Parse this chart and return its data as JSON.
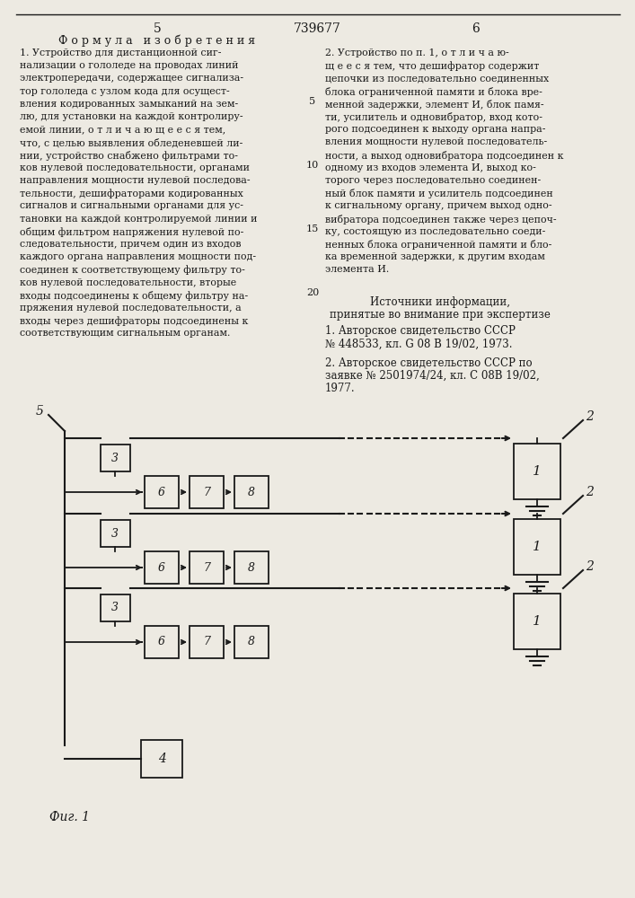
{
  "bg_color": "#edeae2",
  "text_color": "#1a1a1a",
  "page_left": "5",
  "page_title": "739677",
  "page_right": "6",
  "section_header": "Ф о р м у л а   и з о б р е т е н и я",
  "fig_label": "Фиг. 1",
  "left_lines": [
    "1. Устройство для дистанционной сиг-",
    "нализации о гололеде на проводах линий",
    "электропередачи, содержащее сигнализа-",
    "тор гололеда с узлом кода для осущест-",
    "вления кодированных замыканий на зем-",
    "лю, для установки на каждой контролиру-",
    "емой линии, о т л и ч а ю щ е е с я тем,",
    "что, с целью выявления обледеневшей ли-",
    "нии, устройство снабжено фильтрами то-",
    "ков нулевой последовательности, органами",
    "направления мощности нулевой последова-",
    "тельности, дешифраторами кодированных",
    "сигналов и сигнальными органами для ус-",
    "тановки на каждой контролируемой линии и",
    "общим фильтром напряжения нулевой по-",
    "следовательности, причем один из входов",
    "каждого органа направления мощности под-",
    "соединен к соответствующему фильтру то-",
    "ков нулевой последовательности, вторые",
    "входы подсоединены к общему фильтру на-",
    "пряжения нулевой последовательности, а",
    "входы через дешифраторы подсоединены к",
    "соответствующим сигнальным органам."
  ],
  "right_lines": [
    "2. Устройство по п. 1, о т л и ч а ю-",
    "щ е е с я тем, что дешифратор содержит",
    "цепочки из последовательно соединенных",
    "блока ограниченной памяти и блока вре-",
    "менной задержки, элемент И, блок памя-",
    "ти, усилитель и одновибратор, вход кото-",
    "рого подсоединен к выходу органа напра-",
    "вления мощности нулевой последователь-",
    "ности, а выход одновибратора подсоединен к",
    "одному из входов элемента И, выход ко-",
    "торого через последовательно соединен-",
    "ный блок памяти и усилитель подсоединен",
    "к сигнальному органу, причем выход одно-",
    "вибратора подсоединен также через цепоч-",
    "ку, состоящую из последовательно соеди-",
    "ненных блока ограниченной памяти и бло-",
    "ка временной задержки, к другим входам",
    "элемента И."
  ],
  "src_header1": "Источники информации,",
  "src_header2": "принятые во внимание при экспертизе",
  "src1_line1": "1. Авторское свидетельство СССР",
  "src1_line2": "№ 448533, кл. G 08 В 19/02, 1973.",
  "src2_line1": "2. Авторское свидетельство СССР по",
  "src2_line2": "заявке № 2501974/24, кл. С 08В 19/02,",
  "src2_line3": "1977."
}
